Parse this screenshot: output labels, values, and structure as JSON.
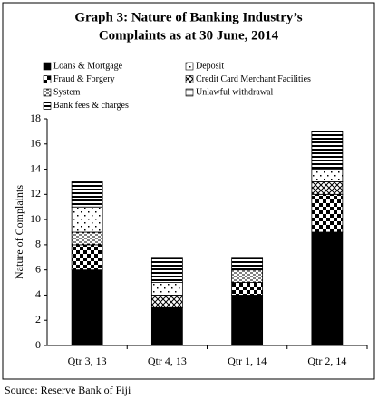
{
  "chart_data": {
    "type": "stacked_bar",
    "title": [
      "Graph 3: Nature of Banking Industry’s",
      "Complaints as at 30 June, 2014"
    ],
    "y_label": "Nature of Complaints",
    "source": "Source: Reserve Bank of Fiji",
    "categories": [
      "Qtr 3, 13",
      "Qtr 4, 13",
      "Qtr 1, 14",
      "Qtr 2, 14"
    ],
    "legend_order": [
      0,
      4,
      1,
      2,
      3,
      5,
      6
    ],
    "series": [
      {
        "name": "Loans & Mortgage",
        "pattern": "solid",
        "values": [
          6,
          3,
          4,
          9
        ]
      },
      {
        "name": "Fraud & Forgery",
        "pattern": "checker",
        "values": [
          2,
          0,
          1,
          3
        ]
      },
      {
        "name": "Credit Card Merchant Facilities",
        "pattern": "cross",
        "values": [
          0,
          1,
          0,
          1
        ]
      },
      {
        "name": "System",
        "pattern": "dash",
        "values": [
          1,
          0,
          1,
          0
        ]
      },
      {
        "name": "Deposit",
        "pattern": "dots",
        "values": [
          2,
          1,
          0,
          1
        ]
      },
      {
        "name": "Unlawful withdrawal",
        "pattern": "lines",
        "values": [
          0,
          0,
          0,
          0
        ]
      },
      {
        "name": "Bank fees & charges",
        "pattern": "stripes",
        "values": [
          2,
          2,
          1,
          3
        ]
      }
    ],
    "ylim": [
      0,
      18
    ],
    "yticks": [
      0,
      2,
      4,
      6,
      8,
      10,
      12,
      14,
      16,
      18
    ]
  }
}
